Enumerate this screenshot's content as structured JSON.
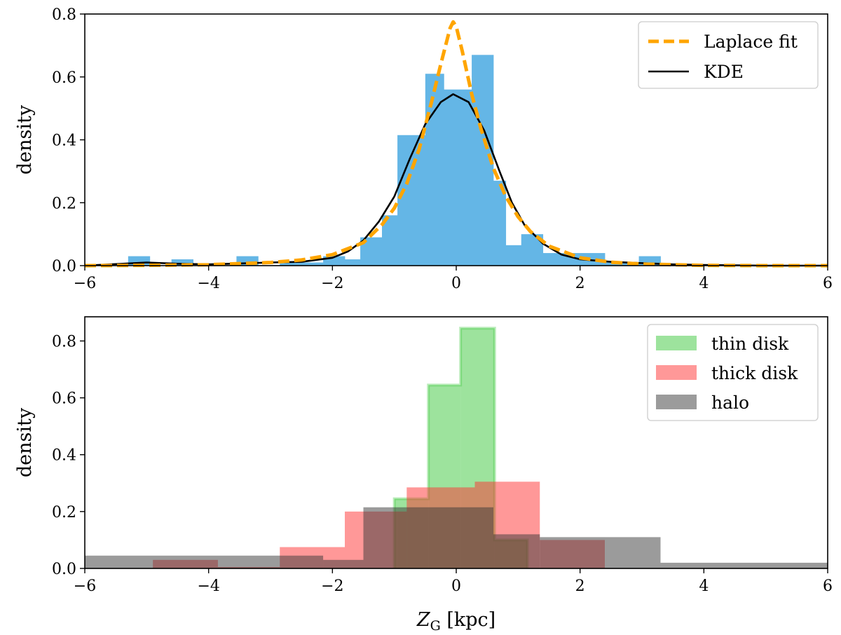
{
  "chart_data": [
    {
      "type": "histogram",
      "ylabel": "density",
      "xlabel": "",
      "xlim": [
        -6,
        6
      ],
      "ylim": [
        0,
        0.8
      ],
      "xticks": [
        "−6",
        "−4",
        "−2",
        "0",
        "2",
        "4",
        "6"
      ],
      "yticks": [
        "0.0",
        "0.2",
        "0.4",
        "0.6",
        "0.8"
      ],
      "histogram": {
        "name": "data",
        "color": "#64b6e6",
        "bins": [
          {
            "x0": -5.3,
            "x1": -4.95,
            "y": 0.03
          },
          {
            "x0": -4.95,
            "x1": -4.6,
            "y": 0.0
          },
          {
            "x0": -4.6,
            "x1": -4.25,
            "y": 0.02
          },
          {
            "x0": -4.25,
            "x1": -3.9,
            "y": 0.0
          },
          {
            "x0": -3.9,
            "x1": -3.55,
            "y": 0.0
          },
          {
            "x0": -3.55,
            "x1": -3.2,
            "y": 0.03
          },
          {
            "x0": -3.2,
            "x1": -2.85,
            "y": 0.0
          },
          {
            "x0": -2.85,
            "x1": -2.5,
            "y": 0.01
          },
          {
            "x0": -2.5,
            "x1": -2.15,
            "y": 0.01
          },
          {
            "x0": -2.15,
            "x1": -1.8,
            "y": 0.03
          },
          {
            "x0": -1.8,
            "x1": -1.55,
            "y": 0.02
          },
          {
            "x0": -1.55,
            "x1": -1.2,
            "y": 0.09
          },
          {
            "x0": -1.2,
            "x1": -0.95,
            "y": 0.16
          },
          {
            "x0": -0.95,
            "x1": -0.5,
            "y": 0.415
          },
          {
            "x0": -0.5,
            "x1": -0.2,
            "y": 0.61
          },
          {
            "x0": -0.2,
            "x1": 0.25,
            "y": 0.56
          },
          {
            "x0": 0.25,
            "x1": 0.6,
            "y": 0.67
          },
          {
            "x0": 0.6,
            "x1": 0.8,
            "y": 0.27
          },
          {
            "x0": 0.8,
            "x1": 1.05,
            "y": 0.065
          },
          {
            "x0": 1.05,
            "x1": 1.4,
            "y": 0.1
          },
          {
            "x0": 1.4,
            "x1": 1.75,
            "y": 0.04
          },
          {
            "x0": 1.75,
            "x1": 2.05,
            "y": 0.04
          },
          {
            "x0": 2.05,
            "x1": 2.4,
            "y": 0.04
          },
          {
            "x0": 2.4,
            "x1": 2.95,
            "y": 0.01
          },
          {
            "x0": 2.95,
            "x1": 3.3,
            "y": 0.03
          }
        ]
      },
      "lines": [
        {
          "name": "Laplace fit",
          "color": "#ffa500",
          "dash": true,
          "x": [
            -6,
            -5,
            -4,
            -3,
            -2.5,
            -2,
            -1.5,
            -1.2,
            -1.0,
            -0.8,
            -0.6,
            -0.4,
            -0.25,
            -0.1,
            -0.05,
            0,
            0.1,
            0.25,
            0.4,
            0.6,
            0.8,
            1.0,
            1.2,
            1.5,
            2,
            2.5,
            3,
            4,
            5,
            6
          ],
          "y": [
            0.0,
            0.001,
            0.003,
            0.01,
            0.018,
            0.035,
            0.073,
            0.13,
            0.183,
            0.26,
            0.37,
            0.52,
            0.64,
            0.755,
            0.775,
            0.76,
            0.68,
            0.545,
            0.435,
            0.31,
            0.22,
            0.155,
            0.108,
            0.062,
            0.025,
            0.011,
            0.005,
            0.001,
            0.0,
            0.0
          ]
        },
        {
          "name": "KDE",
          "color": "#000000",
          "dash": false,
          "x": [
            -6,
            -5.5,
            -5,
            -4.5,
            -4,
            -3.5,
            -3,
            -2.5,
            -2,
            -1.75,
            -1.5,
            -1.25,
            -1.0,
            -0.75,
            -0.5,
            -0.25,
            -0.05,
            0.2,
            0.45,
            0.7,
            0.9,
            1.1,
            1.4,
            1.7,
            2.0,
            2.5,
            3.0,
            3.5,
            4,
            5,
            6
          ],
          "y": [
            0.0,
            0.005,
            0.01,
            0.006,
            0.004,
            0.007,
            0.01,
            0.012,
            0.025,
            0.045,
            0.08,
            0.14,
            0.22,
            0.34,
            0.45,
            0.52,
            0.545,
            0.52,
            0.43,
            0.3,
            0.2,
            0.13,
            0.07,
            0.035,
            0.02,
            0.012,
            0.008,
            0.004,
            0.002,
            0.0,
            0.0
          ]
        }
      ],
      "legend": {
        "position": "top-right",
        "entries": [
          {
            "label": "Laplace fit",
            "style": "dashed-line",
            "color": "#ffa500"
          },
          {
            "label": "KDE",
            "style": "line",
            "color": "#000000"
          }
        ]
      }
    },
    {
      "type": "histogram",
      "ylabel": "density",
      "xlabel_main": "Z",
      "xlabel_sub": "G",
      "xlabel_unit": " [kpc]",
      "xlim": [
        -6,
        6
      ],
      "ylim": [
        0,
        0.885
      ],
      "xticks": [
        "−6",
        "−4",
        "−2",
        "0",
        "2",
        "4",
        "6"
      ],
      "yticks": [
        "0.0",
        "0.2",
        "0.4",
        "0.6",
        "0.8"
      ],
      "series": [
        {
          "name": "thin disk",
          "color": "#3cc83c",
          "opacity": 0.5,
          "bins": [
            {
              "x0": -1.0,
              "x1": -0.45,
              "y": 0.245
            },
            {
              "x0": -0.45,
              "x1": 0.07,
              "y": 0.645
            },
            {
              "x0": 0.07,
              "x1": 0.62,
              "y": 0.845
            },
            {
              "x0": 0.62,
              "x1": 1.15,
              "y": 0.1
            }
          ]
        },
        {
          "name": "thick disk",
          "color": "#ff3232",
          "opacity": 0.5,
          "bins": [
            {
              "x0": -4.9,
              "x1": -3.85,
              "y": 0.03
            },
            {
              "x0": -3.85,
              "x1": -2.85,
              "y": 0.005
            },
            {
              "x0": -2.85,
              "x1": -1.8,
              "y": 0.075
            },
            {
              "x0": -1.8,
              "x1": -0.8,
              "y": 0.2
            },
            {
              "x0": -0.8,
              "x1": 0.3,
              "y": 0.285
            },
            {
              "x0": 0.3,
              "x1": 1.35,
              "y": 0.305
            },
            {
              "x0": 1.35,
              "x1": 2.4,
              "y": 0.1
            }
          ]
        },
        {
          "name": "halo",
          "color": "#373737",
          "opacity": 0.5,
          "bins": [
            {
              "x0": -6.0,
              "x1": -2.15,
              "y": 0.045
            },
            {
              "x0": -2.15,
              "x1": -1.5,
              "y": 0.03
            },
            {
              "x0": -1.5,
              "x1": -0.95,
              "y": 0.215
            },
            {
              "x0": -0.95,
              "x1": 0.6,
              "y": 0.215
            },
            {
              "x0": 0.6,
              "x1": 1.35,
              "y": 0.12
            },
            {
              "x0": 1.35,
              "x1": 3.3,
              "y": 0.11
            },
            {
              "x0": 3.3,
              "x1": 6.0,
              "y": 0.02
            }
          ]
        }
      ],
      "legend": {
        "position": "top-right",
        "entries": [
          {
            "label": "thin disk",
            "style": "patch",
            "color": "#3cc83c"
          },
          {
            "label": "thick disk",
            "style": "patch",
            "color": "#ff3232"
          },
          {
            "label": "halo",
            "style": "patch",
            "color": "#373737"
          }
        ]
      }
    }
  ]
}
